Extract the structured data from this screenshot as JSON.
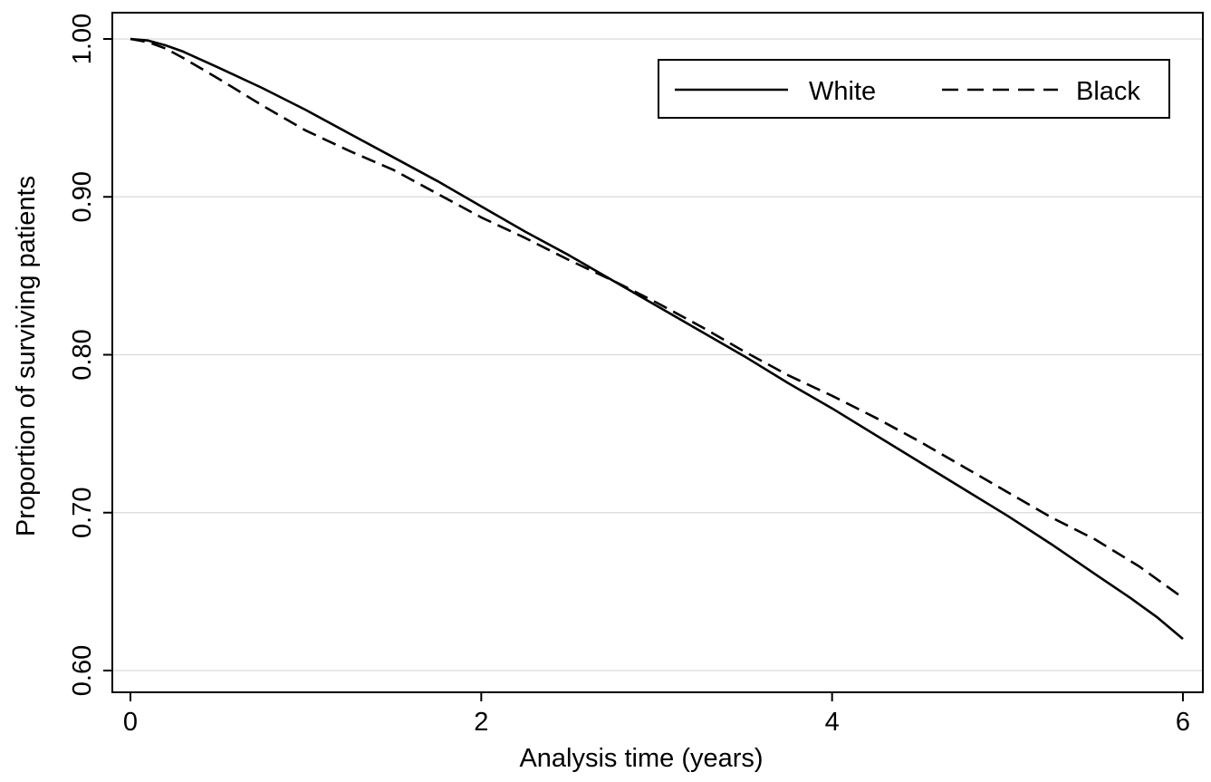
{
  "chart_data": {
    "type": "line",
    "xlabel": "Analysis time (years)",
    "ylabel": "Proportion of surviving patients",
    "xlim": [
      -0.05,
      6.1
    ],
    "ylim": [
      0.595,
      1.015
    ],
    "x_ticks": [
      0,
      2,
      4,
      6
    ],
    "x_tick_labels": [
      "0",
      "2",
      "4",
      "6"
    ],
    "y_ticks": [
      0.6,
      0.7,
      0.8,
      0.9,
      1.0
    ],
    "y_tick_labels": [
      "0.60",
      "0.70",
      "0.80",
      "0.90",
      "1.00"
    ],
    "grid": "horizontal",
    "legend_position": "top-right",
    "series": [
      {
        "name": "White",
        "style": "solid",
        "color": "#000000",
        "x": [
          0,
          0.1,
          0.2,
          0.3,
          0.5,
          0.75,
          1.0,
          1.25,
          1.5,
          1.75,
          2.0,
          2.25,
          2.5,
          2.75,
          3.0,
          3.25,
          3.5,
          3.75,
          4.0,
          4.25,
          4.5,
          4.75,
          5.0,
          5.25,
          5.5,
          5.7,
          5.85,
          6.0
        ],
        "values": [
          1.0,
          0.999,
          0.996,
          0.992,
          0.982,
          0.969,
          0.955,
          0.94,
          0.925,
          0.91,
          0.894,
          0.878,
          0.863,
          0.847,
          0.831,
          0.815,
          0.799,
          0.782,
          0.766,
          0.749,
          0.732,
          0.715,
          0.698,
          0.68,
          0.661,
          0.646,
          0.634,
          0.62
        ]
      },
      {
        "name": "Black",
        "style": "dashed",
        "color": "#000000",
        "x": [
          0,
          0.1,
          0.2,
          0.3,
          0.5,
          0.75,
          1.0,
          1.25,
          1.5,
          1.75,
          2.0,
          2.25,
          2.5,
          2.75,
          3.0,
          3.25,
          3.5,
          3.75,
          4.0,
          4.25,
          4.5,
          4.75,
          5.0,
          5.25,
          5.5,
          5.75,
          6.0
        ],
        "values": [
          1.0,
          0.998,
          0.994,
          0.988,
          0.975,
          0.958,
          0.942,
          0.929,
          0.917,
          0.902,
          0.887,
          0.874,
          0.86,
          0.847,
          0.833,
          0.818,
          0.802,
          0.787,
          0.774,
          0.76,
          0.745,
          0.729,
          0.713,
          0.697,
          0.683,
          0.666,
          0.646
        ]
      }
    ]
  }
}
